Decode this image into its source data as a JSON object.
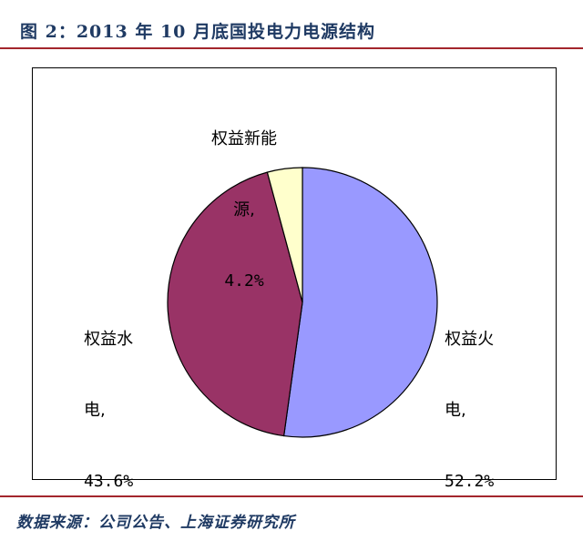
{
  "figure": {
    "title": "图 2：2013 年 10 月底国投电力电源结构",
    "source": "数据来源：公司公告、上海证券研究所"
  },
  "chart_data": {
    "type": "pie",
    "title": "",
    "slices": [
      {
        "label_lines": [
          "权益火",
          "电,"
        ],
        "value_text": "52.2%",
        "value": 52.2,
        "color": "#9999ff"
      },
      {
        "label_lines": [
          "权益水",
          "电,"
        ],
        "value_text": "43.6%",
        "value": 43.6,
        "color": "#993366"
      },
      {
        "label_lines": [
          "权益新能",
          "源,"
        ],
        "value_text": "4.2%",
        "value": 4.2,
        "color": "#ffffcc"
      }
    ],
    "start": "12 o'clock",
    "direction": "clockwise",
    "legend": "none"
  }
}
